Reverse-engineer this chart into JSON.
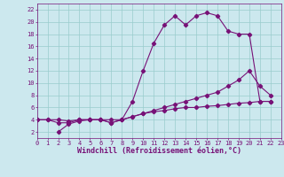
{
  "xlabel": "Windchill (Refroidissement éolien,°C)",
  "bg_color": "#cce8ee",
  "grid_color": "#99cccc",
  "line_color": "#771177",
  "xlim": [
    0,
    23
  ],
  "ylim": [
    1,
    23
  ],
  "xticks": [
    0,
    1,
    2,
    3,
    4,
    5,
    6,
    7,
    8,
    9,
    10,
    11,
    12,
    13,
    14,
    15,
    16,
    17,
    18,
    19,
    20,
    21,
    22,
    23
  ],
  "yticks": [
    2,
    4,
    6,
    8,
    10,
    12,
    14,
    16,
    18,
    20,
    22
  ],
  "curves": [
    {
      "x": [
        0,
        1,
        2,
        3,
        4,
        5,
        6,
        7,
        8,
        9,
        10,
        11,
        12,
        13,
        14,
        15,
        16,
        17,
        18,
        19,
        20,
        21,
        22
      ],
      "y": [
        4,
        4,
        4,
        3.8,
        4,
        4,
        4,
        4,
        4,
        4.5,
        5,
        5.3,
        5.5,
        5.8,
        6,
        6,
        6.2,
        6.3,
        6.5,
        6.7,
        6.8,
        7,
        7
      ]
    },
    {
      "x": [
        0,
        1,
        2,
        3,
        4,
        5,
        6,
        7,
        8,
        9,
        10,
        11,
        12,
        13,
        14,
        15,
        16,
        17,
        18,
        19,
        20,
        21,
        22
      ],
      "y": [
        4,
        4,
        3.5,
        3.5,
        4,
        4,
        4,
        3.5,
        4,
        4.5,
        5,
        5.5,
        6,
        6.5,
        7,
        7.5,
        8,
        8.5,
        9.5,
        10.5,
        12,
        9.5,
        8
      ]
    },
    {
      "x": [
        2,
        3,
        4,
        5,
        6,
        7,
        8,
        9,
        10,
        11,
        12,
        13,
        14,
        15,
        16,
        17,
        18,
        19,
        20,
        21,
        22
      ],
      "y": [
        2,
        3.3,
        3.8,
        4,
        4,
        3.5,
        4,
        7,
        12,
        16.5,
        19.5,
        21,
        19.5,
        21,
        21.5,
        21,
        18.5,
        18,
        18,
        7,
        7
      ]
    }
  ]
}
